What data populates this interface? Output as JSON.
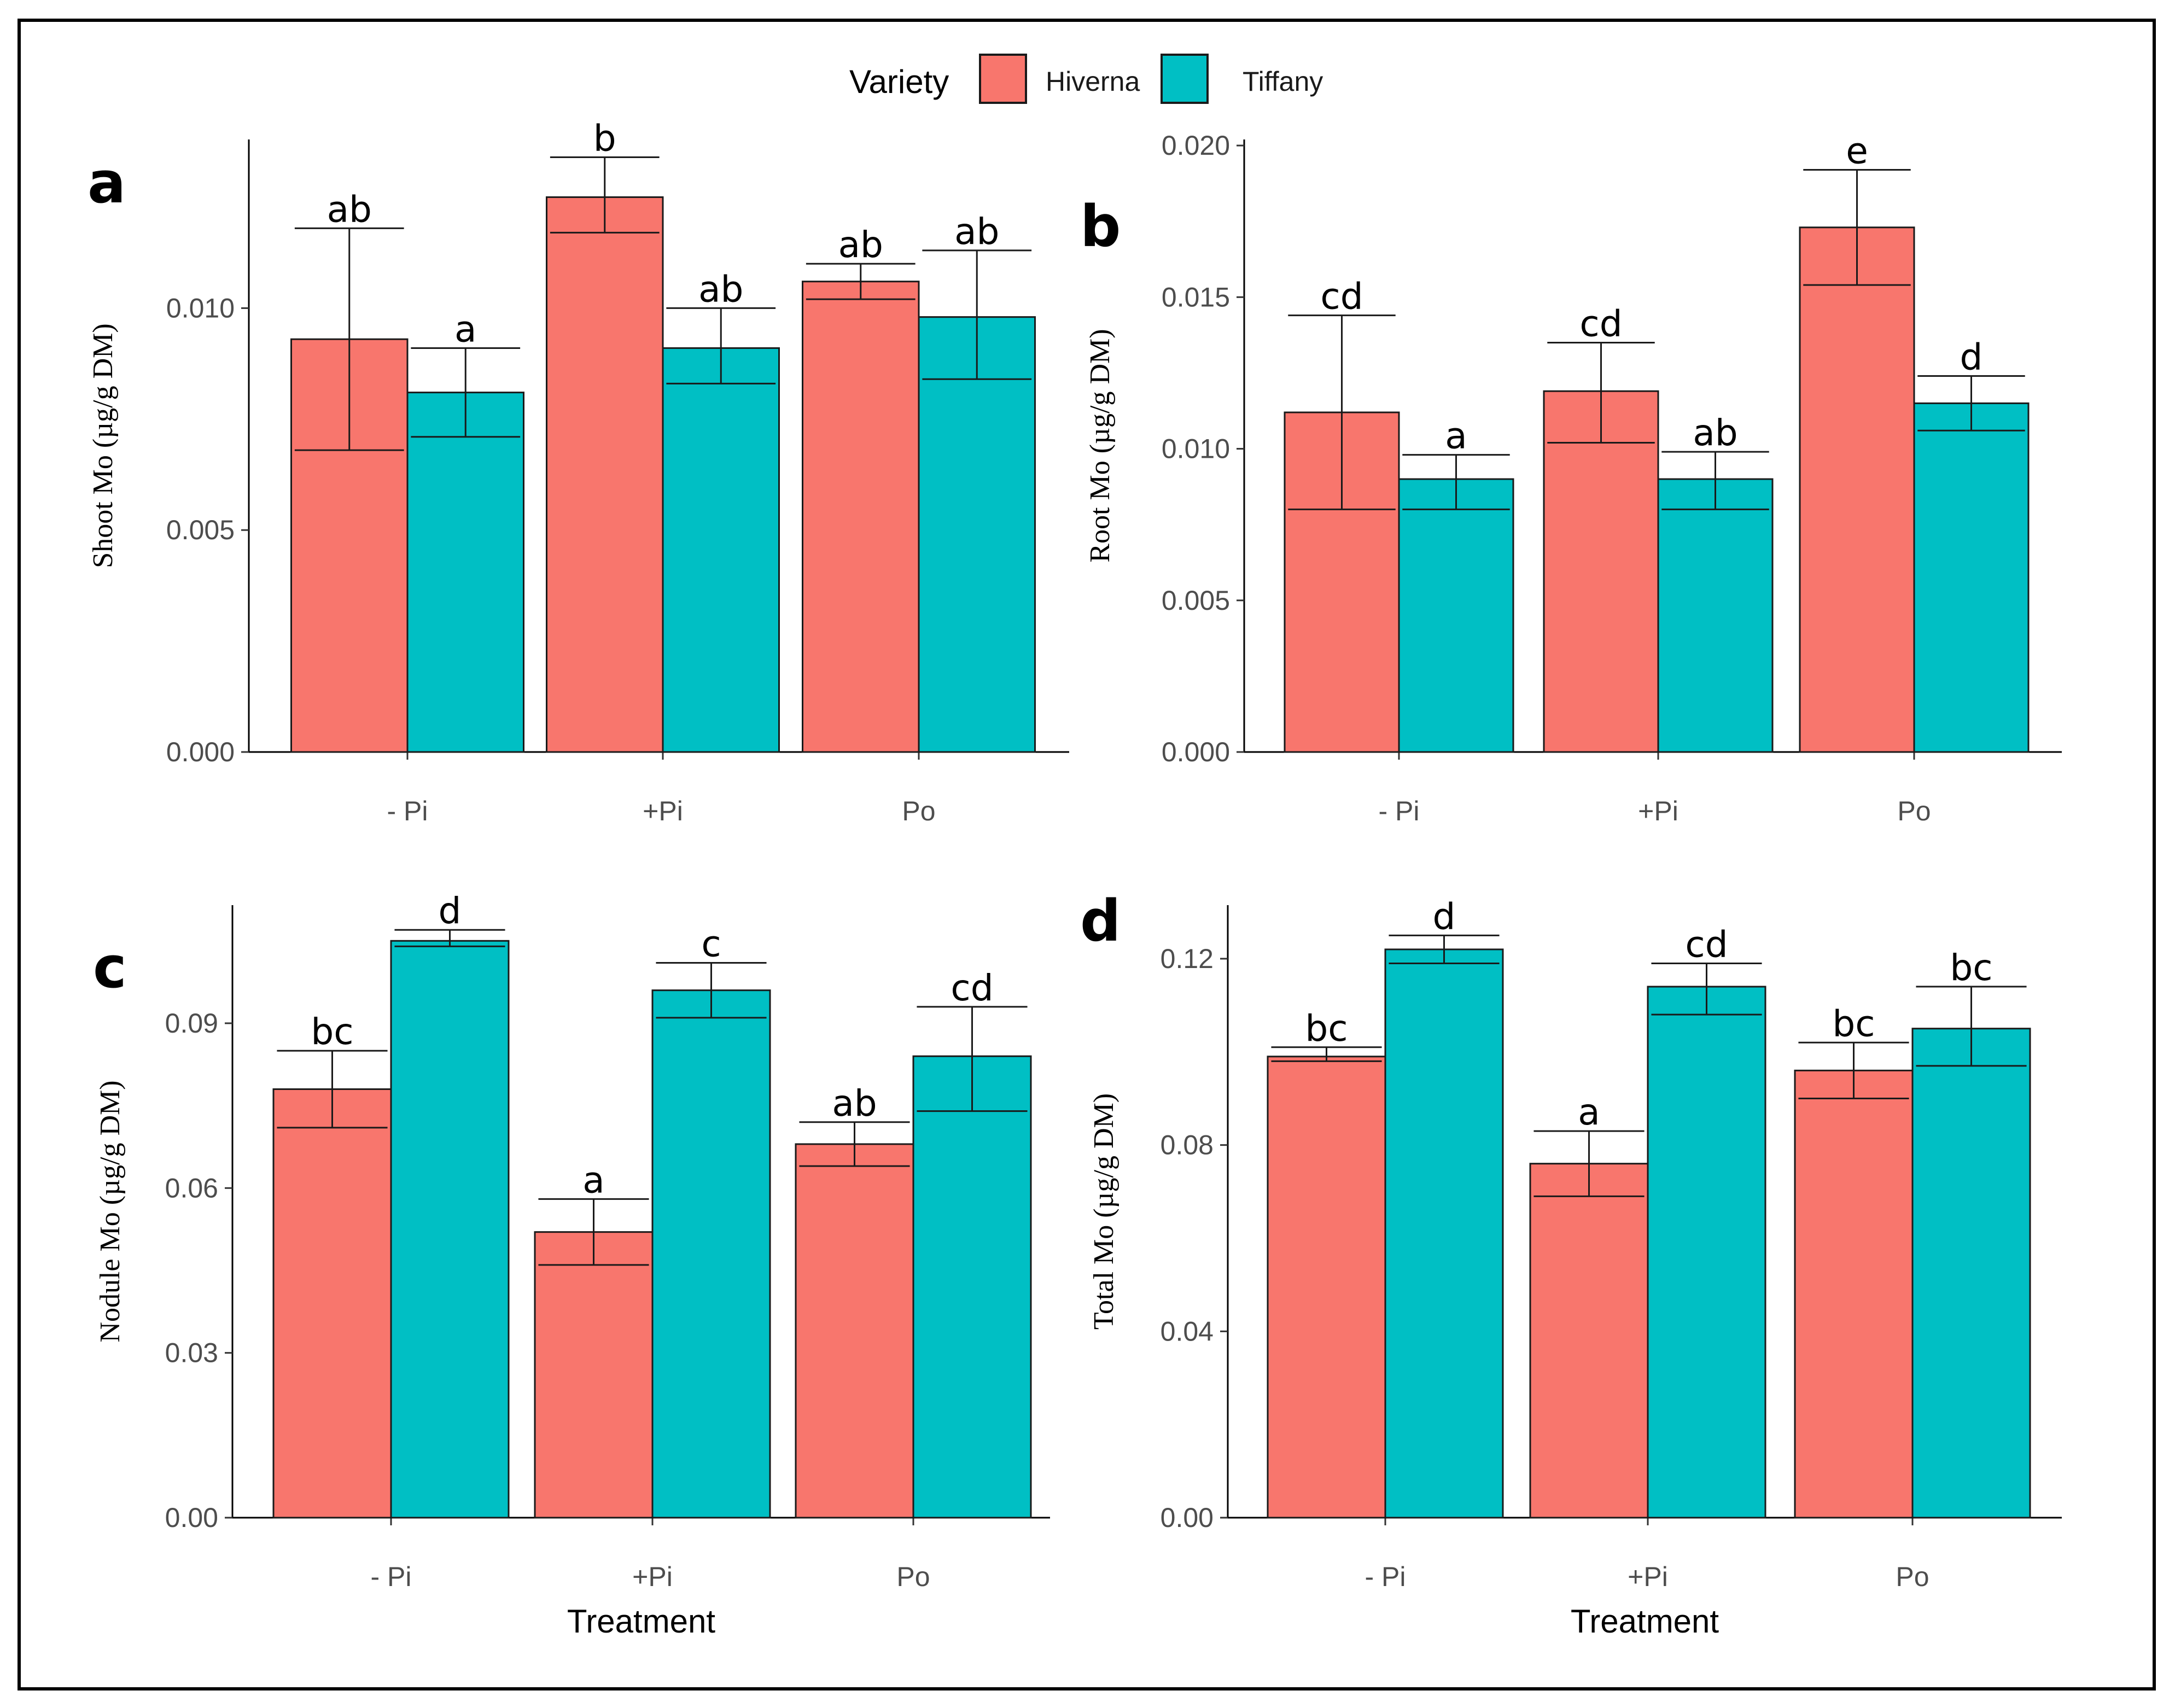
{
  "legend": {
    "title": "Variety",
    "items": [
      {
        "name": "Hiverna",
        "color": "#F8766D"
      },
      {
        "name": "Tiffany",
        "color": "#00BFC4"
      }
    ]
  },
  "colors": {
    "hiverna": "#F8766D",
    "tiffany": "#00BFC4",
    "axis": "#000000",
    "frame": "#000000"
  },
  "chart_data": [
    {
      "panel": "a",
      "type": "bar",
      "ylabel": "Shoot Mo (µg/g DM)",
      "xlabel": "",
      "categories": [
        "- Pi",
        "+Pi",
        "Po"
      ],
      "ylim": [
        0,
        0.0138
      ],
      "yticks": [
        0.0,
        0.005,
        0.01
      ],
      "ytick_labels": [
        "0.000",
        "0.005",
        "0.010"
      ],
      "series": [
        {
          "name": "Hiverna",
          "values": [
            0.0093,
            0.0125,
            0.0106
          ],
          "err_low": [
            0.0068,
            0.0117,
            0.0102
          ],
          "err_high": [
            0.0118,
            0.0134,
            0.011
          ],
          "sig": [
            "ab",
            "b",
            "ab"
          ]
        },
        {
          "name": "Tiffany",
          "values": [
            0.0081,
            0.0091,
            0.0098
          ],
          "err_low": [
            0.0071,
            0.0083,
            0.0084
          ],
          "err_high": [
            0.0091,
            0.01,
            0.0113
          ],
          "sig": [
            "a",
            "ab",
            "ab"
          ]
        }
      ]
    },
    {
      "panel": "b",
      "type": "bar",
      "ylabel": "Root Mo (µg/g DM)",
      "xlabel": "",
      "categories": [
        "- Pi",
        "+Pi",
        "Po"
      ],
      "ylim": [
        0,
        0.0202
      ],
      "yticks": [
        0.0,
        0.005,
        0.01,
        0.015,
        0.02
      ],
      "ytick_labels": [
        "0.000",
        "0.005",
        "0.010",
        "0.015",
        "0.020"
      ],
      "series": [
        {
          "name": "Hiverna",
          "values": [
            0.0112,
            0.0119,
            0.0173
          ],
          "err_low": [
            0.008,
            0.0102,
            0.0154
          ],
          "err_high": [
            0.0144,
            0.0135,
            0.0192
          ],
          "sig": [
            "cd",
            "cd",
            "e"
          ]
        },
        {
          "name": "Tiffany",
          "values": [
            0.009,
            0.009,
            0.0115
          ],
          "err_low": [
            0.008,
            0.008,
            0.0106
          ],
          "err_high": [
            0.0098,
            0.0099,
            0.0124
          ],
          "sig": [
            "a",
            "ab",
            "d"
          ]
        }
      ]
    },
    {
      "panel": "c",
      "type": "bar",
      "ylabel": "Nodule Mo (µg/g DM)",
      "xlabel": "Treatment",
      "categories": [
        "- Pi",
        "+Pi",
        "Po"
      ],
      "ylim": [
        0,
        0.1115
      ],
      "yticks": [
        0.0,
        0.03,
        0.06,
        0.09
      ],
      "ytick_labels": [
        "0.00",
        "0.03",
        "0.06",
        "0.09"
      ],
      "series": [
        {
          "name": "Hiverna",
          "values": [
            0.078,
            0.052,
            0.068
          ],
          "err_low": [
            0.071,
            0.046,
            0.064
          ],
          "err_high": [
            0.085,
            0.058,
            0.072
          ],
          "sig": [
            "bc",
            "a",
            "ab"
          ]
        },
        {
          "name": "Tiffany",
          "values": [
            0.105,
            0.096,
            0.084
          ],
          "err_low": [
            0.104,
            0.091,
            0.074
          ],
          "err_high": [
            0.107,
            0.101,
            0.093
          ],
          "sig": [
            "d",
            "c",
            "cd"
          ]
        }
      ]
    },
    {
      "panel": "d",
      "type": "bar",
      "ylabel": "Total Mo (µg/g DM)",
      "xlabel": "Treatment",
      "categories": [
        "- Pi",
        "+Pi",
        "Po"
      ],
      "ylim": [
        0,
        0.1315
      ],
      "yticks": [
        0.0,
        0.04,
        0.08,
        0.12
      ],
      "ytick_labels": [
        "0.00",
        "0.04",
        "0.08",
        "0.12"
      ],
      "series": [
        {
          "name": "Hiverna",
          "values": [
            0.099,
            0.076,
            0.096
          ],
          "err_low": [
            0.098,
            0.069,
            0.09
          ],
          "err_high": [
            0.101,
            0.083,
            0.102
          ],
          "sig": [
            "bc",
            "a",
            "bc"
          ]
        },
        {
          "name": "Tiffany",
          "values": [
            0.122,
            0.114,
            0.105
          ],
          "err_low": [
            0.119,
            0.108,
            0.097
          ],
          "err_high": [
            0.125,
            0.119,
            0.114
          ],
          "sig": [
            "d",
            "cd",
            "bc"
          ]
        }
      ]
    }
  ]
}
